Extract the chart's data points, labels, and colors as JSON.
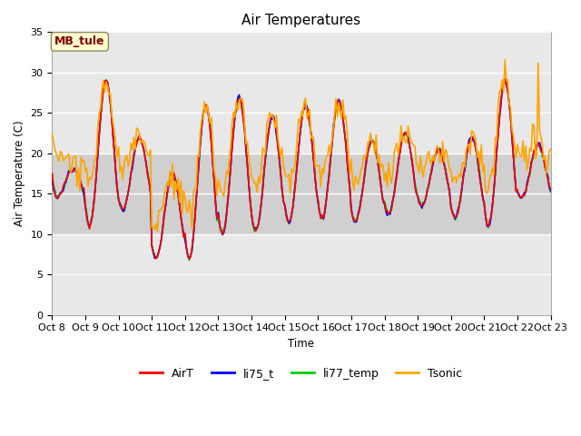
{
  "title": "Air Temperatures",
  "ylabel": "Air Temperature (C)",
  "xlabel": "Time",
  "annotation_text": "MB_tule",
  "ylim": [
    0,
    35
  ],
  "yticks": [
    0,
    5,
    10,
    15,
    20,
    25,
    30,
    35
  ],
  "xtick_labels": [
    "Oct 8",
    "Oct 9",
    "Oct 10",
    "Oct 11",
    "Oct 12",
    "Oct 13",
    "Oct 14",
    "Oct 15",
    "Oct 16",
    "Oct 17",
    "Oct 18",
    "Oct 19",
    "Oct 20",
    "Oct 21",
    "Oct 22",
    "Oct 23"
  ],
  "colors": {
    "AirT": "#ff0000",
    "li75_t": "#0000ff",
    "li77_temp": "#00cc00",
    "Tsonic": "#ffa500"
  },
  "legend_labels": [
    "AirT",
    "li75_t",
    "li77_temp",
    "Tsonic"
  ],
  "grid_color": "#ffffff",
  "plot_bg": "#e8e8e8",
  "band_bg": "#d0d0d0",
  "annotation_bg": "#ffffcc",
  "annotation_border": "#800000",
  "annotation_text_color": "#800000"
}
